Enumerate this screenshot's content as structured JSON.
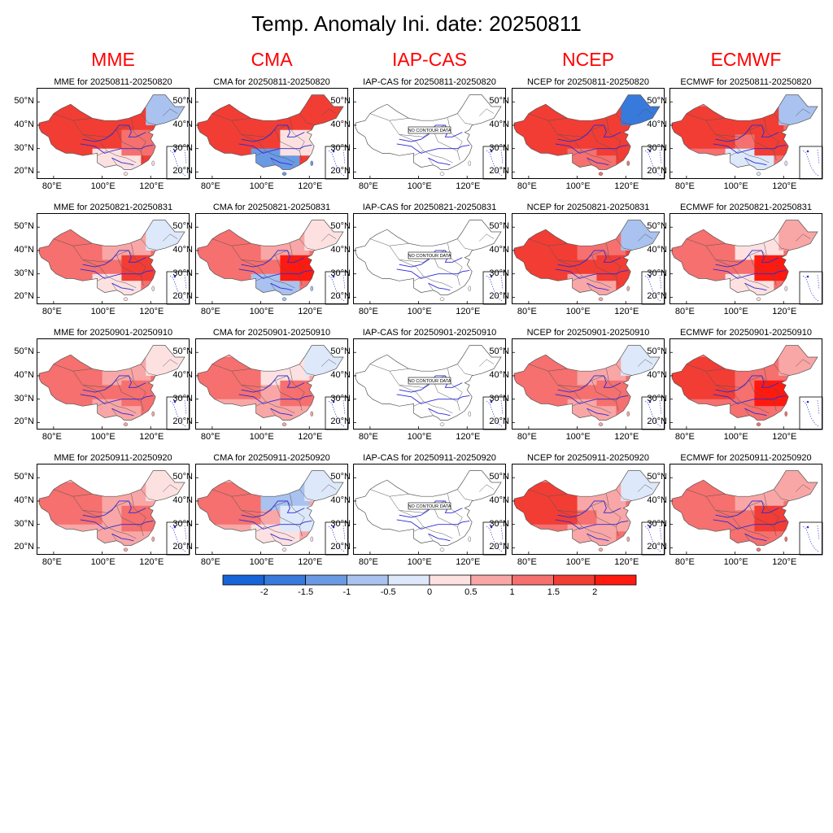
{
  "title": "Temp. Anomaly Ini. date: 20250811",
  "columns": [
    {
      "name": "MME",
      "has_data": true
    },
    {
      "name": "CMA",
      "has_data": true
    },
    {
      "name": "IAP-CAS",
      "has_data": false
    },
    {
      "name": "NCEP",
      "has_data": true
    },
    {
      "name": "ECMWF",
      "has_data": true
    }
  ],
  "periods": [
    "20250811-20250820",
    "20250821-20250831",
    "20250901-20250910",
    "20250911-20250920"
  ],
  "panel_title_connector": "for",
  "no_data_label": "NO CONTOUR DATA",
  "axes": {
    "lat_ticks": [
      "50°N",
      "40°N",
      "30°N",
      "20°N"
    ],
    "lon_ticks": [
      "80°E",
      "100°E",
      "120°E"
    ]
  },
  "colorbar": {
    "levels": [
      "-2",
      "-1.5",
      "-1",
      "-0.5",
      "0",
      "0.5",
      "1",
      "1.5",
      "2"
    ],
    "colors": [
      "#1664d8",
      "#3879dc",
      "#6b9ae5",
      "#a9c2ef",
      "#dde8fa",
      "#fde1e1",
      "#f9a6a6",
      "#f5706e",
      "#f23d34",
      "#ff1a10"
    ]
  },
  "map_colors": {
    "border_line": "#555555",
    "river_line": "#2a2ad6"
  },
  "anomaly_pattern": {
    "MME": [
      {
        "overall": 1.6,
        "west": 1.8,
        "north": 1.8,
        "northeast": -1.0,
        "south": 0.3,
        "east": 1.4
      },
      {
        "overall": 1.2,
        "west": 1.4,
        "north": 0.8,
        "northeast": -0.3,
        "south": 0.2,
        "east": 1.9
      },
      {
        "overall": 1.0,
        "west": 1.0,
        "north": 0.6,
        "northeast": 0.4,
        "south": 0.7,
        "east": 1.3
      },
      {
        "overall": 0.9,
        "west": 1.0,
        "north": 0.7,
        "northeast": 0.2,
        "south": 0.6,
        "east": 1.1
      }
    ],
    "CMA": [
      {
        "overall": 1.6,
        "west": 1.9,
        "north": 1.8,
        "northeast": 1.5,
        "south": -1.2,
        "east": 0.4
      },
      {
        "overall": 1.2,
        "west": 1.4,
        "north": 0.7,
        "northeast": 0.3,
        "south": -0.6,
        "east": 2.0
      },
      {
        "overall": 0.9,
        "west": 1.1,
        "north": 0.3,
        "northeast": -0.3,
        "south": 0.6,
        "east": 1.4
      },
      {
        "overall": 0.8,
        "west": 1.0,
        "north": -0.6,
        "northeast": -0.4,
        "south": 0.3,
        "east": -0.5
      }
    ],
    "IAP-CAS": [
      null,
      null,
      null,
      null
    ],
    "NCEP": [
      {
        "overall": 1.7,
        "west": 1.8,
        "north": 1.9,
        "northeast": -1.6,
        "south": 1.3,
        "east": 1.7
      },
      {
        "overall": 1.6,
        "west": 1.8,
        "north": 1.2,
        "northeast": -0.8,
        "south": 0.9,
        "east": 1.6
      },
      {
        "overall": 1.1,
        "west": 1.3,
        "north": 0.7,
        "northeast": -0.3,
        "south": 0.9,
        "east": 1.2
      },
      {
        "overall": 1.2,
        "west": 1.8,
        "north": 0.6,
        "northeast": -0.2,
        "south": 0.6,
        "east": 0.9
      }
    ],
    "ECMWF": [
      {
        "overall": 1.4,
        "west": 1.6,
        "north": 1.7,
        "northeast": -0.8,
        "south": -0.3,
        "east": 1.8
      },
      {
        "overall": 1.0,
        "west": 1.1,
        "north": 0.3,
        "northeast": 0.8,
        "south": 0.1,
        "east": 2.1
      },
      {
        "overall": 1.3,
        "west": 1.7,
        "north": 1.0,
        "northeast": 0.7,
        "south": 1.0,
        "east": 2.0
      },
      {
        "overall": 1.1,
        "west": 1.3,
        "north": 0.8,
        "northeast": 0.5,
        "south": 1.0,
        "east": 1.5
      }
    ]
  }
}
